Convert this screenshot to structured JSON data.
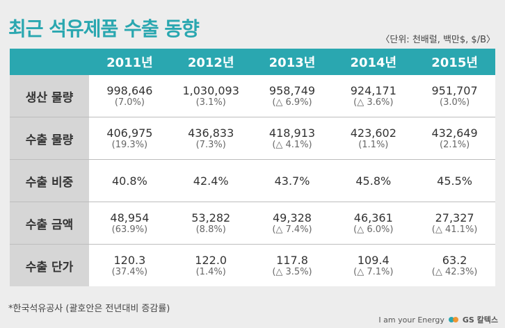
{
  "title": "최근 석유제품 수출 동향",
  "unit_note": "〈단위: 천배럴, 백만$, $/B〉",
  "years": [
    "2011년",
    "2012년",
    "2013년",
    "2014년",
    "2015년"
  ],
  "rows": [
    {
      "label": "생산 물량",
      "cells": [
        {
          "value": "998,646",
          "sub": "(7.0%)"
        },
        {
          "value": "1,030,093",
          "sub": "(3.1%)"
        },
        {
          "value": "958,749",
          "sub": "(△ 6.9%)"
        },
        {
          "value": "924,171",
          "sub": "(△ 3.6%)"
        },
        {
          "value": "951,707",
          "sub": "(3.0%)"
        }
      ]
    },
    {
      "label": "수출 물량",
      "cells": [
        {
          "value": "406,975",
          "sub": "(19.3%)"
        },
        {
          "value": "436,833",
          "sub": "(7.3%)"
        },
        {
          "value": "418,913",
          "sub": "(△ 4.1%)"
        },
        {
          "value": "423,602",
          "sub": "(1.1%)"
        },
        {
          "value": "432,649",
          "sub": "(2.1%)"
        }
      ]
    },
    {
      "label": "수출 비중",
      "cells": [
        {
          "value": "40.8%",
          "sub": ""
        },
        {
          "value": "42.4%",
          "sub": ""
        },
        {
          "value": "43.7%",
          "sub": ""
        },
        {
          "value": "45.8%",
          "sub": ""
        },
        {
          "value": "45.5%",
          "sub": ""
        }
      ]
    },
    {
      "label": "수출 금액",
      "cells": [
        {
          "value": "48,954",
          "sub": "(63.9%)"
        },
        {
          "value": "53,282",
          "sub": "(8.8%)"
        },
        {
          "value": "49,328",
          "sub": "(△ 7.4%)"
        },
        {
          "value": "46,361",
          "sub": "(△ 6.0%)"
        },
        {
          "value": "27,327",
          "sub": "(△ 41.1%)"
        }
      ]
    },
    {
      "label": "수출 단가",
      "cells": [
        {
          "value": "120.3",
          "sub": "(37.4%)"
        },
        {
          "value": "122.0",
          "sub": "(1.4%)"
        },
        {
          "value": "117.8",
          "sub": "(△ 3.5%)"
        },
        {
          "value": "109.4",
          "sub": "(△ 7.1%)"
        },
        {
          "value": "63.2",
          "sub": "(△ 42.3%)"
        }
      ]
    }
  ],
  "footnote": "*한국석유공사 (괄호안은 전년대비 증감률)",
  "brand": {
    "slogan": "I am your Energy",
    "logo_icon": "gs-logo-icon",
    "name": "GS 칼텍스"
  },
  "colors": {
    "accent": "#2aa7b0",
    "row_label_bg": "#d6d6d6"
  }
}
